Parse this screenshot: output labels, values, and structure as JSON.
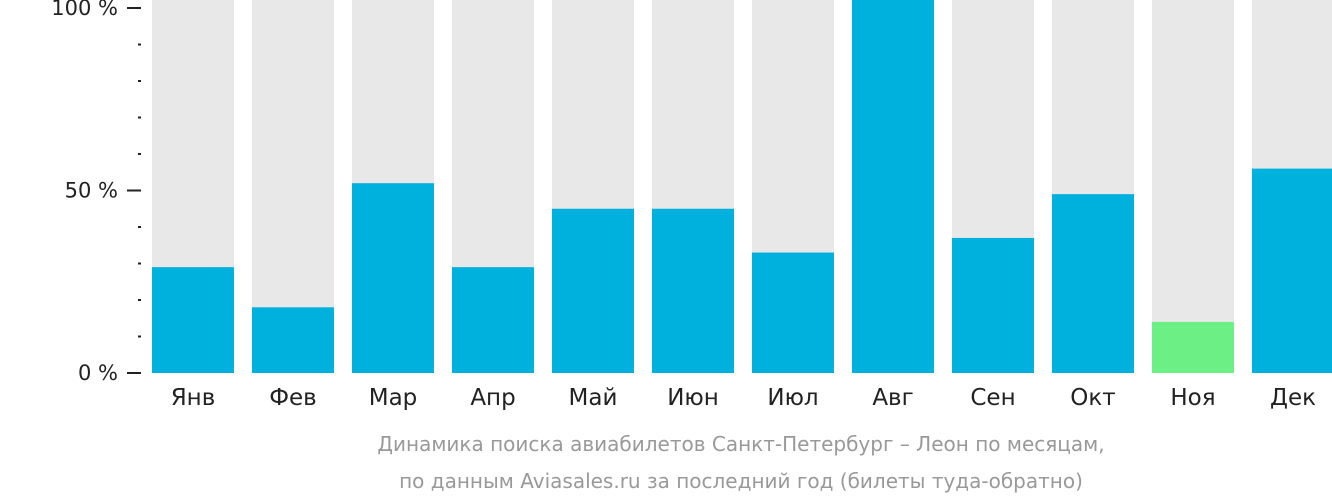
{
  "chart_data": {
    "type": "bar",
    "categories": [
      "Янв",
      "Фев",
      "Мар",
      "Апр",
      "Май",
      "Июн",
      "Июл",
      "Авг",
      "Сен",
      "Окт",
      "Ноя",
      "Дек"
    ],
    "values": [
      29,
      18,
      52,
      29,
      45,
      45,
      33,
      100,
      37,
      49,
      14,
      56
    ],
    "ylim": [
      0,
      100
    ],
    "yticks": [
      {
        "value": 100,
        "label": "100 %"
      },
      {
        "value": 50,
        "label": "50 %"
      },
      {
        "value": 0,
        "label": "0 %"
      }
    ],
    "minor_tick_step": 10,
    "highlight_index": 10,
    "colors": {
      "bar": "#00b0dd",
      "highlight": "#6cf085",
      "track": "#e8e8e8",
      "axis": "#222222",
      "caption": "#999999"
    },
    "caption": [
      "Динамика поиска авиабилетов Санкт-Петербург – Леон по месяцам,",
      "по данным Aviasales.ru за последний год (билеты туда-обратно)"
    ],
    "grid": false,
    "legend": "none"
  }
}
